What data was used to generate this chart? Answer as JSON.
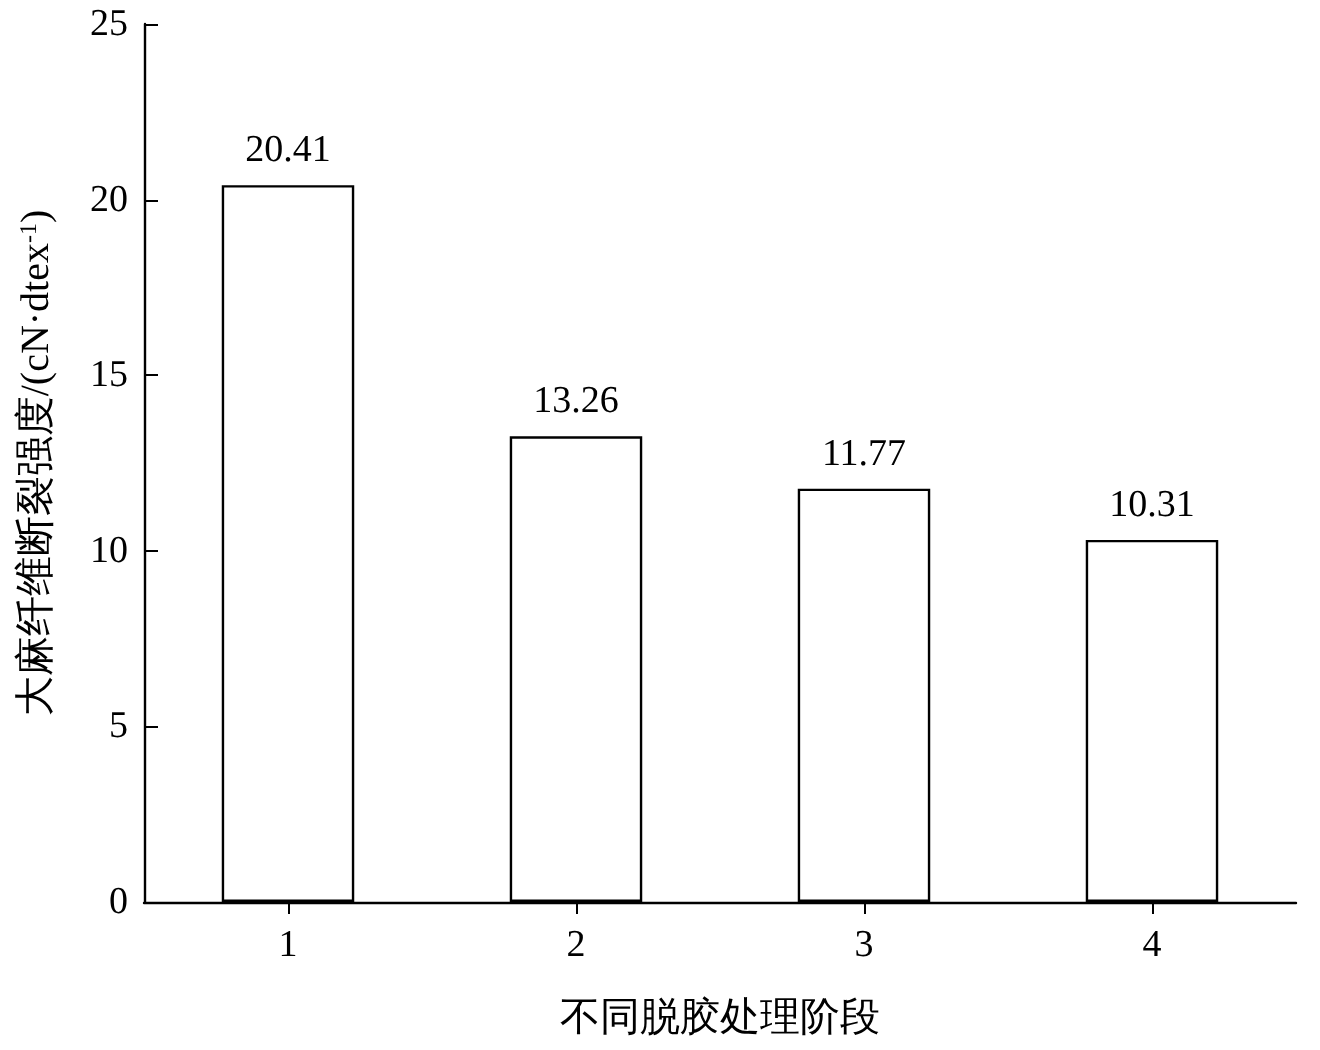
{
  "chart_data": {
    "type": "bar",
    "xlabel": "不同脱胶处理阶段",
    "ylabel": "大麻纤维断裂强度/(cN·dtex$^{-1}$)",
    "categories": [
      "1",
      "2",
      "3",
      "4"
    ],
    "values": [
      20.41,
      13.26,
      11.77,
      10.31
    ],
    "color": "#ffffff",
    "ylim": [
      0,
      25
    ],
    "yticks": [
      0,
      5,
      10,
      15,
      20,
      25
    ],
    "data_labels": true
  }
}
